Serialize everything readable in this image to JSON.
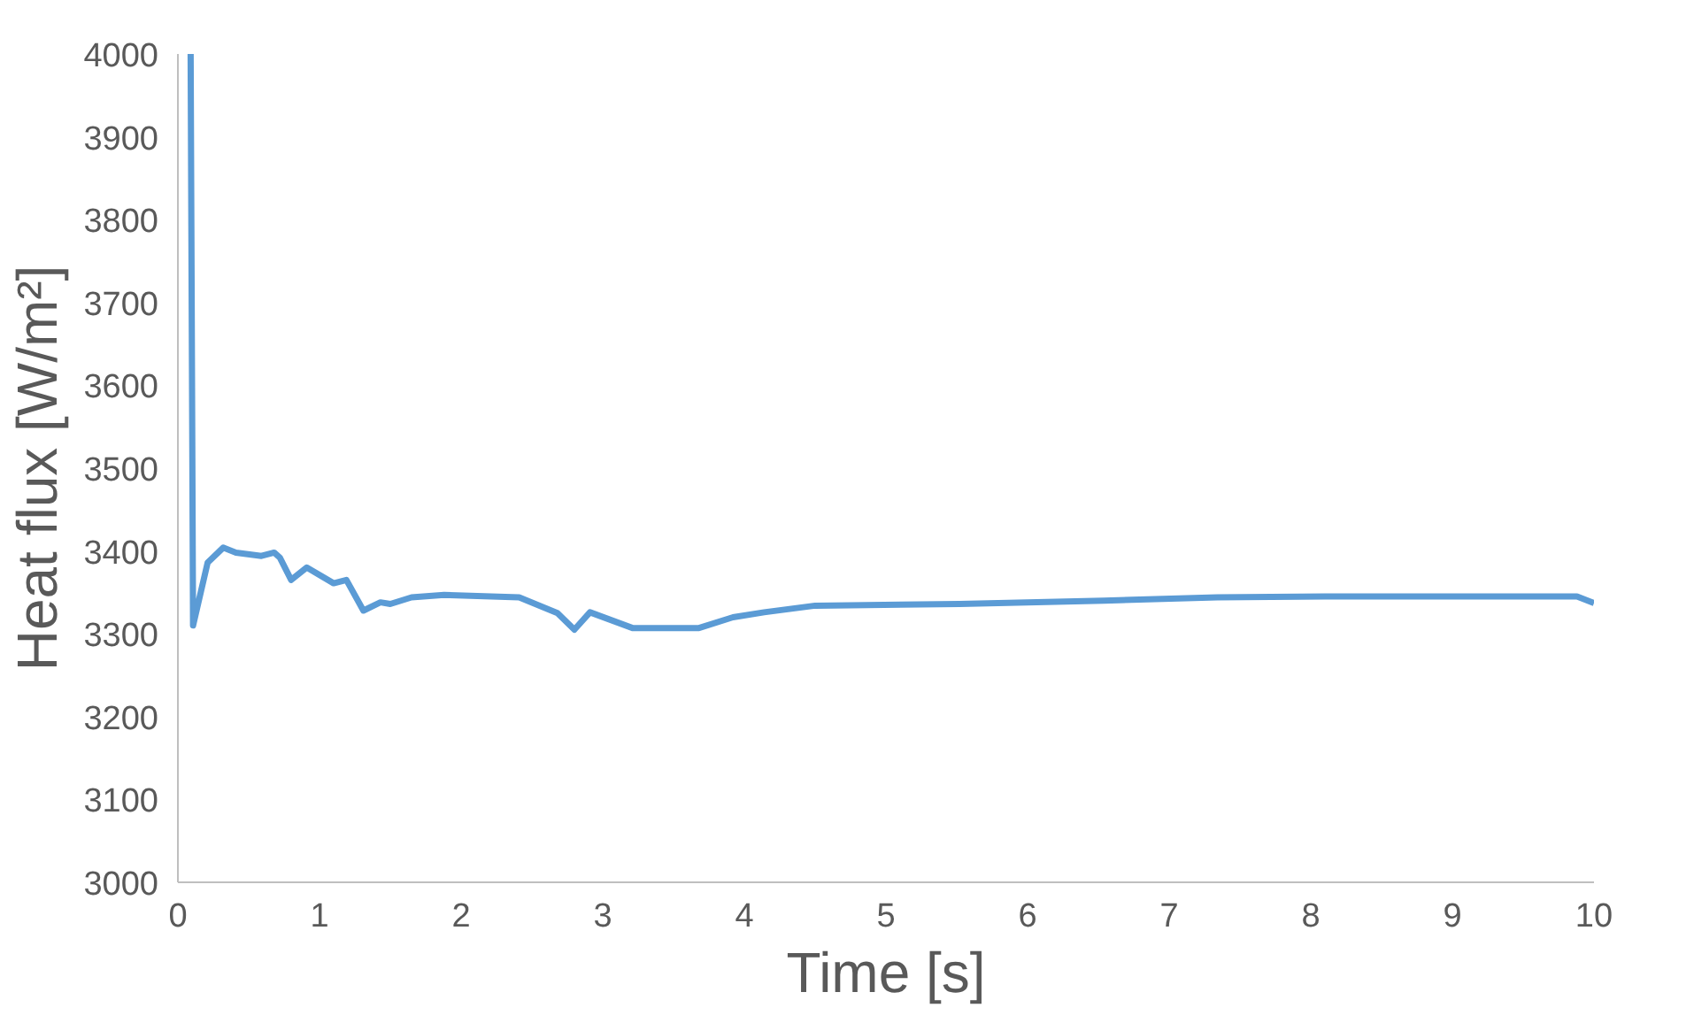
{
  "chart_data": {
    "type": "line",
    "xlabel": "Time [s]",
    "ylabel": "Heat flux [W/m²]",
    "x": [
      0.09,
      0.107,
      0.21,
      0.32,
      0.41,
      0.59,
      0.68,
      0.72,
      0.8,
      0.91,
      1.1,
      1.19,
      1.31,
      1.43,
      1.5,
      1.65,
      1.88,
      2.41,
      2.68,
      2.8,
      2.91,
      3.21,
      3.68,
      3.92,
      4.14,
      4.5,
      5.52,
      6.54,
      7.34,
      8.1,
      8.99,
      9.88,
      10.0
    ],
    "series": [
      {
        "color": "#5b9bd5",
        "values": [
          4000,
          3310,
          3386,
          3404,
          3398,
          3394,
          3398,
          3392,
          3365,
          3380,
          3361,
          3365,
          3328,
          3338,
          3336,
          3344,
          3347,
          3344,
          3325,
          3305,
          3326,
          3307,
          3307,
          3320,
          3326,
          3334,
          3336,
          3340,
          3344,
          3345,
          3345,
          3345,
          3337
        ]
      }
    ],
    "xlim": [
      0,
      10
    ],
    "ylim": [
      3000,
      4000
    ],
    "xticks": [
      0,
      1,
      2,
      3,
      4,
      5,
      6,
      7,
      8,
      9,
      10
    ],
    "yticks": [
      3000,
      3100,
      3200,
      3300,
      3400,
      3500,
      3600,
      3700,
      3800,
      3900,
      4000
    ],
    "grid": false,
    "marker": "none",
    "line_style": "solid"
  }
}
